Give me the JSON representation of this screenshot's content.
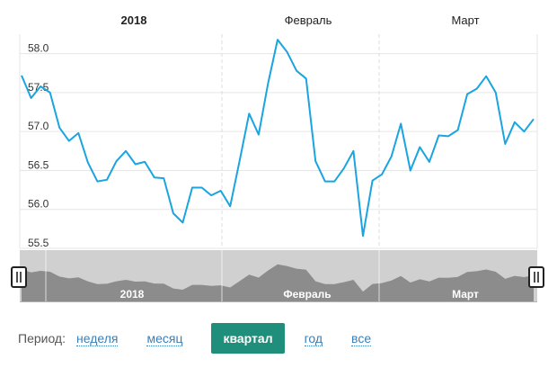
{
  "chart_data": {
    "type": "line",
    "top_labels": [
      "2018",
      "Февраль",
      "Март"
    ],
    "navigator_labels": [
      "2018",
      "Февраль",
      "Март"
    ],
    "y_ticks": [
      "55.5",
      "56.0",
      "56.5",
      "57.0",
      "57.5",
      "58.0"
    ],
    "ylim": [
      55.5,
      58.25
    ],
    "grid": true,
    "colors": {
      "line": "#1aa4e0",
      "navigator_fill": "#8c8c8c",
      "navigator_bg": "#d0d0d0",
      "grid": "#e6e6e6"
    },
    "series": [
      {
        "values": [
          57.72,
          57.43,
          57.58,
          57.5,
          57.05,
          56.88,
          56.98,
          56.6,
          56.36,
          56.38,
          56.62,
          56.75,
          56.58,
          56.61,
          56.41,
          56.4,
          55.95,
          55.83,
          56.28,
          56.28,
          56.18,
          56.24,
          56.04,
          56.63,
          57.23,
          56.96,
          57.62,
          58.18,
          58.02,
          57.78,
          57.68,
          56.62,
          56.36,
          56.36,
          56.53,
          56.75,
          55.66,
          56.37,
          56.45,
          56.68,
          57.1,
          56.5,
          56.8,
          56.61,
          56.95,
          56.94,
          57.02,
          57.48,
          57.55,
          57.71,
          57.5,
          56.84,
          57.12,
          57.0,
          57.16
        ]
      }
    ]
  },
  "period": {
    "label": "Период:",
    "options": [
      "неделя",
      "месяц",
      "квартал",
      "год",
      "все"
    ],
    "active": "квартал"
  }
}
